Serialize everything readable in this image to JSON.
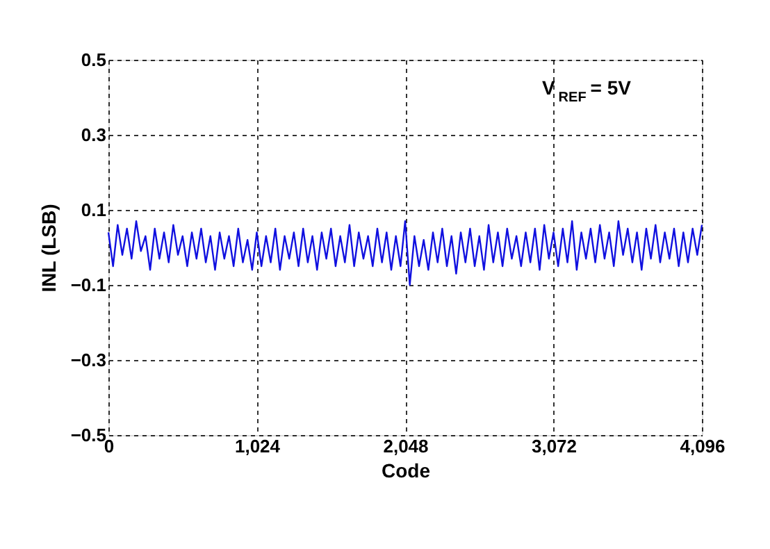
{
  "chart_data": {
    "type": "line",
    "xlabel": "Code",
    "ylabel": "INL (LSB)",
    "annotations": [
      "V$_{REF}$ = 5V"
    ],
    "xlim": [
      0,
      4096
    ],
    "xticks": [
      {
        "value": 0,
        "label": "0"
      },
      {
        "value": 1024,
        "label": "1,024"
      },
      {
        "value": 2048,
        "label": "2,048"
      },
      {
        "value": 3072,
        "label": "3,072"
      },
      {
        "value": 4096,
        "label": "4,096"
      }
    ],
    "ylim": [
      -0.5,
      0.5
    ],
    "yticks": [
      -0.5,
      -0.3,
      -0.1,
      0.1,
      0.3,
      0.5
    ],
    "grid": true,
    "line_style": "solid",
    "marker": "none",
    "series": [
      {
        "color": "#1010e0",
        "x": [
          0,
          32,
          64,
          96,
          128,
          160,
          192,
          224,
          256,
          288,
          320,
          352,
          384,
          416,
          448,
          480,
          512,
          544,
          576,
          608,
          640,
          672,
          704,
          736,
          768,
          800,
          832,
          864,
          896,
          928,
          960,
          992,
          1024,
          1056,
          1088,
          1120,
          1152,
          1184,
          1216,
          1248,
          1280,
          1312,
          1344,
          1376,
          1408,
          1440,
          1472,
          1504,
          1536,
          1568,
          1600,
          1632,
          1664,
          1696,
          1728,
          1760,
          1792,
          1824,
          1856,
          1888,
          1920,
          1952,
          1984,
          2016,
          2048,
          2080,
          2112,
          2144,
          2176,
          2208,
          2240,
          2272,
          2304,
          2336,
          2368,
          2400,
          2432,
          2464,
          2496,
          2528,
          2560,
          2592,
          2624,
          2656,
          2688,
          2720,
          2752,
          2784,
          2816,
          2848,
          2880,
          2912,
          2944,
          2976,
          3008,
          3040,
          3072,
          3104,
          3136,
          3168,
          3200,
          3232,
          3264,
          3296,
          3328,
          3360,
          3392,
          3424,
          3456,
          3488,
          3520,
          3552,
          3584,
          3616,
          3648,
          3680,
          3712,
          3744,
          3776,
          3808,
          3840,
          3872,
          3904,
          3936,
          3968,
          4000,
          4032,
          4064,
          4096
        ],
        "values": [
          0.04,
          -0.05,
          0.06,
          -0.02,
          0.05,
          -0.03,
          0.07,
          -0.01,
          0.03,
          -0.06,
          0.05,
          -0.03,
          0.04,
          -0.04,
          0.06,
          -0.02,
          0.03,
          -0.05,
          0.04,
          -0.03,
          0.05,
          -0.04,
          0.03,
          -0.06,
          0.04,
          -0.03,
          0.03,
          -0.05,
          0.05,
          -0.04,
          0.02,
          -0.06,
          0.04,
          -0.05,
          0.03,
          -0.04,
          0.05,
          -0.06,
          0.03,
          -0.03,
          0.04,
          -0.05,
          0.05,
          -0.04,
          0.03,
          -0.06,
          0.04,
          -0.03,
          0.05,
          -0.05,
          0.03,
          -0.04,
          0.06,
          -0.05,
          0.04,
          -0.03,
          0.03,
          -0.05,
          0.05,
          -0.04,
          0.04,
          -0.06,
          0.03,
          -0.05,
          0.07,
          -0.1,
          0.03,
          -0.05,
          0.02,
          -0.06,
          0.04,
          -0.04,
          0.05,
          -0.05,
          0.03,
          -0.07,
          0.04,
          -0.04,
          0.05,
          -0.05,
          0.03,
          -0.06,
          0.06,
          -0.04,
          0.04,
          -0.05,
          0.05,
          -0.03,
          0.03,
          -0.05,
          0.04,
          -0.04,
          0.05,
          -0.06,
          0.06,
          -0.03,
          0.04,
          -0.05,
          0.05,
          -0.04,
          0.07,
          -0.06,
          0.04,
          -0.03,
          0.05,
          -0.04,
          0.06,
          -0.03,
          0.04,
          -0.05,
          0.07,
          -0.02,
          0.05,
          -0.04,
          0.04,
          -0.06,
          0.05,
          -0.03,
          0.06,
          -0.04,
          0.04,
          -0.03,
          0.05,
          -0.05,
          0.04,
          -0.04,
          0.05,
          -0.02,
          0.06
        ]
      }
    ]
  }
}
